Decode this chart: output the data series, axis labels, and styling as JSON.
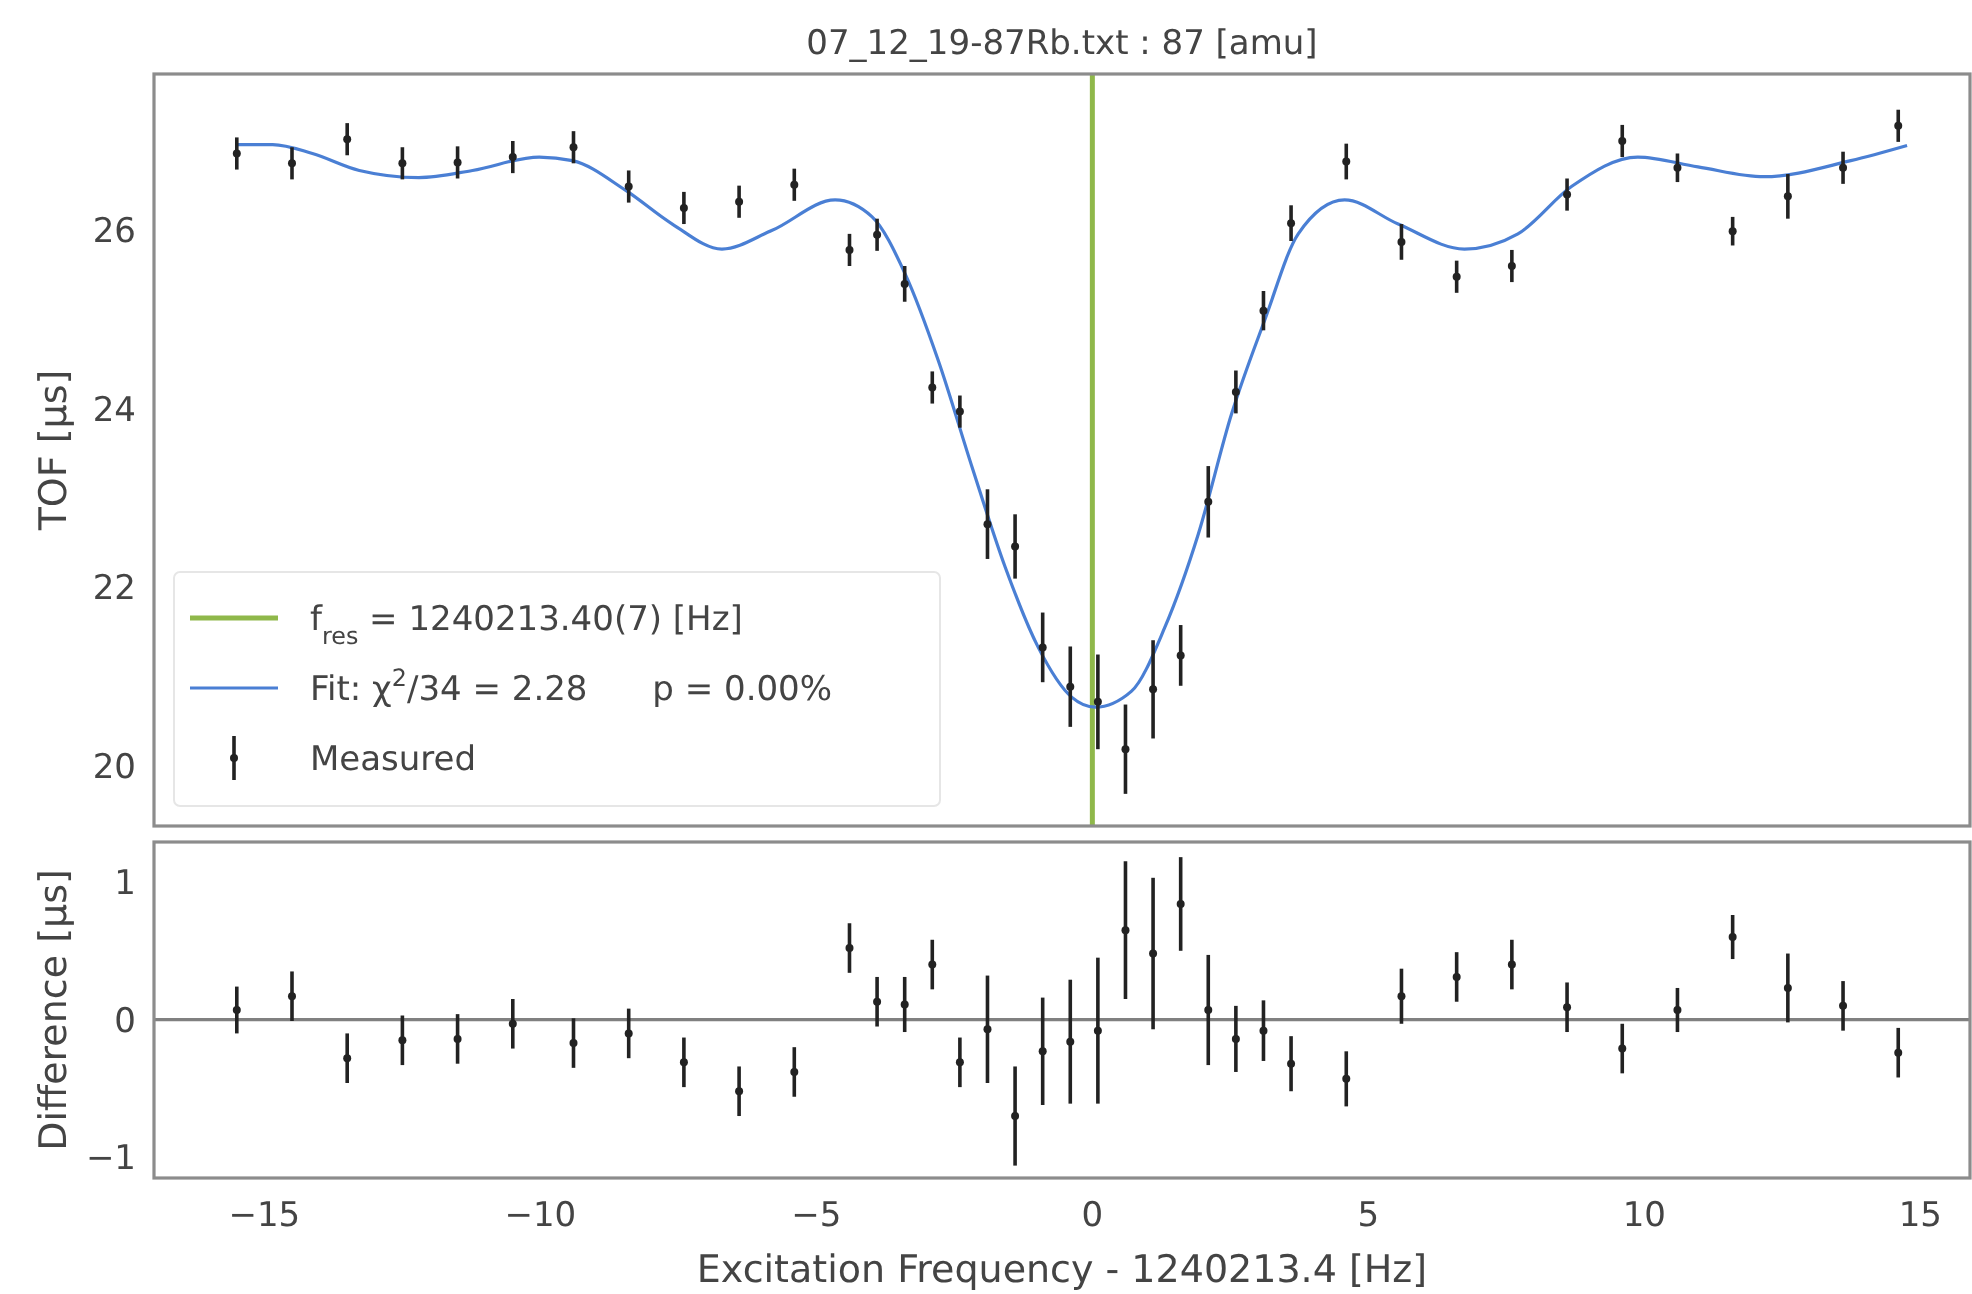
{
  "chart_data": [
    {
      "type": "scatter",
      "title": "07_12_19-87Rb.txt : 87 [amu]",
      "ylabel": "TOF [μs]",
      "xlim": [
        -17,
        15.9
      ],
      "ylim": [
        19.33,
        27.75
      ],
      "yticks": [
        20,
        22,
        24,
        26
      ],
      "tick_labels": "y",
      "legend": "bottom left",
      "series": [
        {
          "name": "f$_{res}$ = 1240213.40(7) [Hz]",
          "type": "line",
          "color": "#8fb84a",
          "x": [
            0,
            0
          ],
          "values": [
            19.33,
            27.75
          ]
        },
        {
          "name": "Fit: χ$^{2}$/34 = 2.28      p = 0.00%",
          "type": "line",
          "color": "#4a7fd4",
          "x": [
            -15.5,
            -14.85,
            -14.13,
            -13.28,
            -12.2,
            -11.23,
            -10.02,
            -9.42,
            -8.46,
            -7.61,
            -6.71,
            -5.8,
            -4.66,
            -3.99,
            -3.39,
            -2.79,
            -2.18,
            -1.58,
            -0.98,
            -0.37,
            0.05,
            0.71,
            1.31,
            1.92,
            2.52,
            3.12,
            3.73,
            4.57,
            5.54,
            6.74,
            7.71,
            8.68,
            9.88,
            10.97,
            12.17,
            13.74,
            14.76
          ],
          "values": [
            26.96,
            26.96,
            26.86,
            26.67,
            26.59,
            26.67,
            26.82,
            26.78,
            26.45,
            26.07,
            25.79,
            26.0,
            26.34,
            26.15,
            25.51,
            24.54,
            23.35,
            22.23,
            21.33,
            20.77,
            20.66,
            20.84,
            21.55,
            22.6,
            23.94,
            24.99,
            25.96,
            26.34,
            26.07,
            25.79,
            25.96,
            26.49,
            26.82,
            26.71,
            26.6,
            26.78,
            26.95
          ]
        },
        {
          "name": "Measured",
          "type": "scatter",
          "marker": "circle",
          "color": "#222222",
          "x": [
            -15.5,
            -14.5,
            -13.5,
            -12.5,
            -11.5,
            -10.5,
            -9.4,
            -8.4,
            -7.4,
            -6.4,
            -5.4,
            -4.4,
            -3.9,
            -3.4,
            -2.9,
            -2.4,
            -1.9,
            -1.4,
            -0.9,
            -0.4,
            0.1,
            0.6,
            1.1,
            1.6,
            2.1,
            2.6,
            3.1,
            3.6,
            4.6,
            5.6,
            6.6,
            7.6,
            8.6,
            9.6,
            10.6,
            11.6,
            12.6,
            13.6,
            14.6
          ],
          "values": [
            26.86,
            26.75,
            27.02,
            26.75,
            26.76,
            26.82,
            26.93,
            26.49,
            26.25,
            26.32,
            26.51,
            25.78,
            25.95,
            25.4,
            24.24,
            23.97,
            22.71,
            22.46,
            21.33,
            20.89,
            20.72,
            20.19,
            20.86,
            21.24,
            22.96,
            24.19,
            25.1,
            26.08,
            26.77,
            25.87,
            25.48,
            25.6,
            26.4,
            27.0,
            26.7,
            25.99,
            26.38,
            26.7,
            27.17
          ],
          "errors": [
            0.18,
            0.18,
            0.18,
            0.18,
            0.18,
            0.18,
            0.18,
            0.18,
            0.18,
            0.18,
            0.18,
            0.18,
            0.18,
            0.2,
            0.18,
            0.18,
            0.39,
            0.36,
            0.39,
            0.45,
            0.53,
            0.5,
            0.55,
            0.34,
            0.4,
            0.24,
            0.22,
            0.2,
            0.2,
            0.2,
            0.18,
            0.18,
            0.18,
            0.18,
            0.16,
            0.16,
            0.25,
            0.18,
            0.18
          ]
        }
      ]
    },
    {
      "type": "scatter",
      "xlabel": "Excitation Frequency - 1240213.4 [Hz]",
      "ylabel": "Difference [μs]",
      "xlim": [
        -17,
        15.9
      ],
      "xticks": [
        {
          "value": -15,
          "label": "−15"
        },
        {
          "value": -10,
          "label": "−10"
        },
        {
          "value": -5,
          "label": "−5"
        },
        0,
        5,
        10,
        15
      ],
      "ylim": [
        -1.15,
        1.29
      ],
      "yticks": [
        {
          "value": -1,
          "label": "−1"
        },
        0,
        1
      ],
      "marker": "circle",
      "color": "#222222",
      "ref_lines": [
        {
          "axis": "y",
          "value": 0,
          "color": "#808080"
        }
      ],
      "x": [
        -15.5,
        -14.5,
        -13.5,
        -12.5,
        -11.5,
        -10.5,
        -9.4,
        -8.4,
        -7.4,
        -6.4,
        -5.4,
        -4.4,
        -3.9,
        -3.4,
        -2.9,
        -2.4,
        -1.9,
        -1.4,
        -0.9,
        -0.4,
        0.1,
        0.6,
        1.1,
        1.6,
        2.1,
        2.6,
        3.1,
        3.6,
        4.6,
        5.6,
        6.6,
        7.6,
        8.6,
        9.6,
        10.6,
        11.6,
        12.6,
        13.6,
        14.6
      ],
      "values": [
        0.07,
        0.17,
        -0.28,
        -0.15,
        -0.14,
        -0.03,
        -0.17,
        -0.1,
        -0.31,
        -0.52,
        -0.38,
        0.52,
        0.13,
        0.11,
        0.4,
        -0.31,
        -0.07,
        -0.7,
        -0.23,
        -0.16,
        -0.08,
        0.65,
        0.48,
        0.84,
        0.07,
        -0.14,
        -0.08,
        -0.32,
        -0.43,
        0.17,
        0.31,
        0.4,
        0.09,
        -0.21,
        0.07,
        0.6,
        0.23,
        0.1,
        -0.24
      ],
      "errors": [
        0.17,
        0.18,
        0.18,
        0.18,
        0.18,
        0.18,
        0.18,
        0.18,
        0.18,
        0.18,
        0.18,
        0.18,
        0.18,
        0.2,
        0.18,
        0.18,
        0.39,
        0.36,
        0.39,
        0.45,
        0.53,
        0.5,
        0.55,
        0.34,
        0.4,
        0.24,
        0.22,
        0.2,
        0.2,
        0.2,
        0.18,
        0.18,
        0.18,
        0.18,
        0.16,
        0.16,
        0.25,
        0.18,
        0.18
      ]
    }
  ]
}
